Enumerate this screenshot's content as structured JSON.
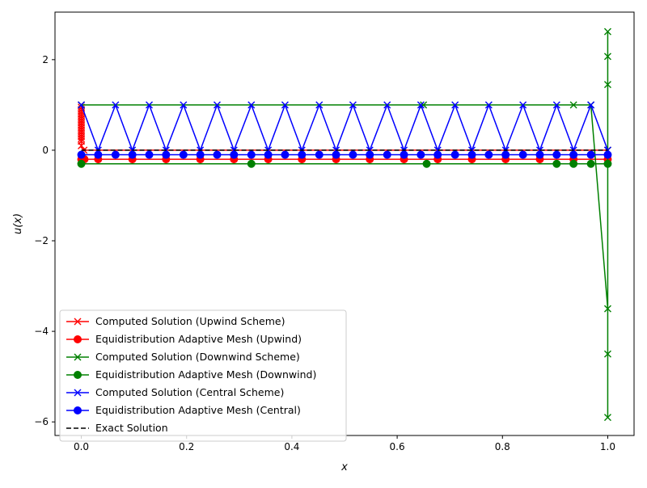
{
  "chart_data": {
    "type": "line",
    "title": "",
    "xlabel": "x",
    "ylabel": "u(x)",
    "xlim": [
      -0.05,
      1.05
    ],
    "ylim": [
      -6.3,
      3.05
    ],
    "xticks": [
      0.0,
      0.2,
      0.4,
      0.6,
      0.8,
      1.0
    ],
    "xtick_labels": [
      "0.0",
      "0.2",
      "0.4",
      "0.6",
      "0.8",
      "1.0"
    ],
    "yticks": [
      -6,
      -4,
      -2,
      0,
      2
    ],
    "ytick_labels": [
      "−6",
      "−4",
      "−2",
      "0",
      "2"
    ],
    "grid": false,
    "legend_position": "lower-left",
    "series": [
      {
        "name": "Computed Solution (Upwind Scheme)",
        "color": "#ff0000",
        "marker": "x",
        "dashed": false,
        "x": [
          0.0,
          0.0,
          0.0,
          0.0,
          0.0,
          0.0,
          0.0,
          0.0,
          0.0,
          0.0,
          0.0,
          0.0,
          0.0,
          0.0,
          0.0,
          0.0,
          0.0,
          0.0,
          0.005,
          1.0
        ],
        "y": [
          1.0,
          0.95,
          0.9,
          0.85,
          0.8,
          0.75,
          0.7,
          0.65,
          0.6,
          0.55,
          0.5,
          0.45,
          0.4,
          0.35,
          0.3,
          0.25,
          0.2,
          0.1,
          0.0,
          0.0
        ]
      },
      {
        "name": "Equidistribution Adaptive Mesh (Upwind)",
        "color": "#ff0000",
        "marker": "o",
        "dashed": false,
        "x": [
          0.0,
          0.006,
          0.032,
          0.097,
          0.161,
          0.226,
          0.29,
          0.355,
          0.419,
          0.484,
          0.548,
          0.613,
          0.677,
          0.742,
          0.806,
          0.871,
          0.935,
          1.0
        ],
        "y": [
          -0.2,
          -0.2,
          -0.2,
          -0.2,
          -0.2,
          -0.2,
          -0.2,
          -0.2,
          -0.2,
          -0.2,
          -0.2,
          -0.2,
          -0.2,
          -0.2,
          -0.2,
          -0.2,
          -0.2,
          -0.2
        ]
      },
      {
        "name": "Computed Solution (Downwind Scheme)",
        "color": "#008000",
        "marker": "x",
        "dashed": false,
        "x": [
          0.0,
          0.65,
          0.935,
          0.968,
          1.0,
          1.0,
          1.0,
          1.0,
          1.0,
          1.0,
          1.0
        ],
        "y": [
          1.0,
          1.0,
          1.0,
          1.0,
          -3.5,
          -4.5,
          -5.9,
          2.62,
          2.07,
          1.45,
          0.0
        ]
      },
      {
        "name": "Equidistribution Adaptive Mesh (Downwind)",
        "color": "#008000",
        "marker": "o",
        "dashed": false,
        "x": [
          0.0,
          0.323,
          0.656,
          0.903,
          0.935,
          0.968,
          1.0
        ],
        "y": [
          -0.3,
          -0.3,
          -0.3,
          -0.3,
          -0.3,
          -0.3,
          -0.3
        ]
      },
      {
        "name": "Computed Solution (Central Scheme)",
        "color": "#0000ff",
        "marker": "x",
        "dashed": false,
        "x": [
          0.0,
          0.032,
          0.065,
          0.097,
          0.129,
          0.161,
          0.194,
          0.226,
          0.258,
          0.29,
          0.323,
          0.355,
          0.387,
          0.419,
          0.452,
          0.484,
          0.516,
          0.548,
          0.581,
          0.613,
          0.645,
          0.677,
          0.71,
          0.742,
          0.774,
          0.806,
          0.839,
          0.871,
          0.903,
          0.935,
          0.968,
          1.0
        ],
        "y": [
          1.0,
          0.0,
          1.0,
          0.0,
          1.0,
          0.0,
          1.0,
          0.0,
          1.0,
          0.0,
          1.0,
          0.0,
          1.0,
          0.0,
          1.0,
          0.0,
          1.0,
          0.0,
          1.0,
          0.0,
          1.0,
          0.0,
          1.0,
          0.0,
          1.0,
          0.0,
          1.0,
          0.0,
          1.0,
          0.0,
          1.0,
          0.0
        ]
      },
      {
        "name": "Equidistribution Adaptive Mesh (Central)",
        "color": "#0000ff",
        "marker": "o",
        "dashed": false,
        "x": [
          0.0,
          0.032,
          0.065,
          0.097,
          0.129,
          0.161,
          0.194,
          0.226,
          0.258,
          0.29,
          0.323,
          0.355,
          0.387,
          0.419,
          0.452,
          0.484,
          0.516,
          0.548,
          0.581,
          0.613,
          0.645,
          0.677,
          0.71,
          0.742,
          0.774,
          0.806,
          0.839,
          0.871,
          0.903,
          0.935,
          0.968,
          1.0
        ],
        "y": [
          -0.1,
          -0.1,
          -0.1,
          -0.1,
          -0.1,
          -0.1,
          -0.1,
          -0.1,
          -0.1,
          -0.1,
          -0.1,
          -0.1,
          -0.1,
          -0.1,
          -0.1,
          -0.1,
          -0.1,
          -0.1,
          -0.1,
          -0.1,
          -0.1,
          -0.1,
          -0.1,
          -0.1,
          -0.1,
          -0.1,
          -0.1,
          -0.1,
          -0.1,
          -0.1,
          -0.1,
          -0.1
        ]
      },
      {
        "name": "Exact Solution",
        "color": "#000000",
        "marker": "none",
        "dashed": true,
        "x": [
          0.0,
          1.0
        ],
        "y": [
          0.0,
          0.0
        ]
      }
    ]
  }
}
